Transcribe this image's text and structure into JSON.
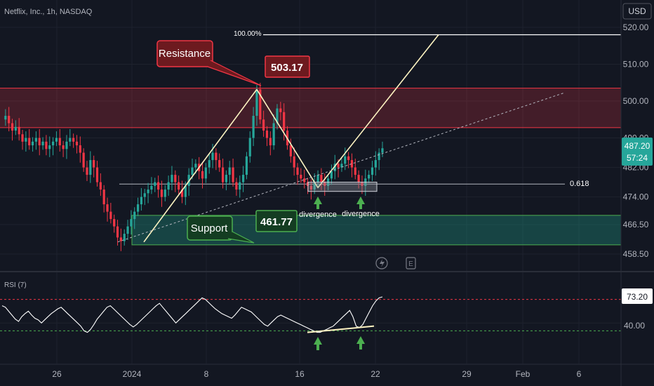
{
  "header": {
    "symbol_label": "Netflix, Inc., 1h, NASDAQ",
    "currency": "USD"
  },
  "chart_data": {
    "type": "candlestick",
    "symbol": "Netflix, Inc., 1h, NASDAQ",
    "price_axis": {
      "ticks": [
        {
          "value": 520.0,
          "label": "520.00"
        },
        {
          "value": 510.0,
          "label": "510.00"
        },
        {
          "value": 500.0,
          "label": "500.00"
        },
        {
          "value": 490.0,
          "label": "490.00"
        },
        {
          "value": 482.0,
          "label": "482.00"
        },
        {
          "value": 474.0,
          "label": "474.00"
        },
        {
          "value": 466.5,
          "label": "466.50"
        },
        {
          "value": 458.5,
          "label": "458.50"
        }
      ]
    },
    "time_axis": {
      "ticks": [
        "26",
        "2024",
        "8",
        "16",
        "22",
        "29",
        "Feb",
        "6"
      ]
    },
    "last_price": {
      "value": 487.2,
      "label": "487.20",
      "countdown": "57:24",
      "color": "#26a69a"
    },
    "zones": {
      "resistance": {
        "top": 503.5,
        "bottom": 492.8,
        "color": "#f23645"
      },
      "support": {
        "top": 469.0,
        "bottom": 461.0,
        "color": "#22ab94"
      }
    },
    "levels": {
      "fib_100": {
        "value": 518.0,
        "label": "100.00%"
      },
      "fib_0618": {
        "value": 477.5,
        "label": "0.618"
      }
    },
    "annotations": {
      "resistance_label": "Resistance",
      "resistance_price": "503.17",
      "support_label": "Support",
      "support_price": "461.77",
      "divergence_1": "divergence",
      "divergence_2": "divergence"
    },
    "price_path": [
      495,
      496,
      494,
      492,
      493,
      491,
      489,
      490,
      488,
      489,
      490,
      488,
      489,
      487,
      488,
      489,
      490,
      488,
      487,
      489,
      490,
      489,
      488,
      486,
      482,
      480,
      484,
      482,
      478,
      476,
      472,
      470,
      468,
      466,
      463,
      462,
      464,
      466,
      468,
      470,
      472,
      474,
      475,
      476,
      477,
      478,
      476,
      474,
      476,
      478,
      480,
      478,
      476,
      474,
      477,
      480,
      482,
      483,
      481,
      479,
      482,
      484,
      486,
      484,
      482,
      478,
      480,
      482,
      478,
      476,
      478,
      480,
      485,
      490,
      496,
      503.17,
      495,
      492,
      490,
      488,
      494,
      498,
      497,
      492,
      488,
      485,
      482,
      480,
      479,
      478,
      477,
      476,
      478,
      480,
      478,
      477,
      479,
      481,
      483,
      482,
      483,
      485,
      484,
      482,
      480,
      478,
      477,
      479,
      480,
      482,
      484,
      486,
      487.2
    ],
    "rsi": {
      "label": "RSI (7)",
      "current": {
        "value": 73.2,
        "label": "73.20"
      },
      "tick": {
        "value": 40.0,
        "label": "40.00"
      },
      "upper": 70,
      "lower": 30,
      "values": [
        62,
        60,
        55,
        50,
        45,
        42,
        48,
        52,
        55,
        50,
        46,
        44,
        40,
        44,
        48,
        52,
        55,
        58,
        60,
        56,
        52,
        48,
        44,
        40,
        36,
        30,
        28,
        32,
        38,
        45,
        50,
        55,
        60,
        62,
        58,
        54,
        50,
        46,
        42,
        38,
        35,
        38,
        42,
        46,
        50,
        54,
        58,
        62,
        65,
        60,
        55,
        50,
        45,
        40,
        44,
        48,
        52,
        56,
        60,
        64,
        68,
        72,
        70,
        66,
        62,
        58,
        55,
        52,
        50,
        48,
        46,
        50,
        55,
        60,
        58,
        56,
        54,
        50,
        46,
        42,
        38,
        36,
        40,
        44,
        48,
        50,
        48,
        46,
        44,
        42,
        40,
        38,
        36,
        34,
        32,
        30,
        28,
        28,
        30,
        32,
        34,
        36,
        40,
        44,
        48,
        52,
        56,
        48,
        36,
        34,
        38,
        46,
        54,
        62,
        68,
        72,
        73.2
      ]
    }
  }
}
